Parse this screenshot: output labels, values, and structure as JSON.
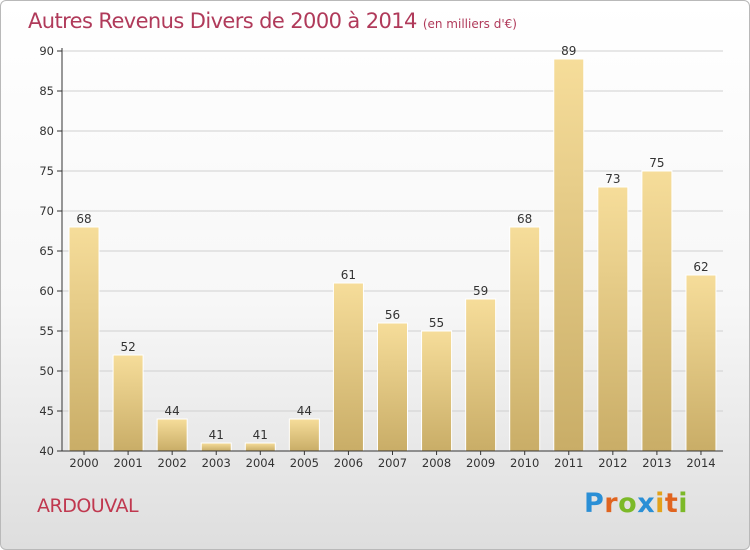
{
  "header": {
    "title": "Autres Revenus Divers de 2000 à 2014",
    "subtitle": "(en milliers d'€)"
  },
  "footer": {
    "place": "ARDOUVAL",
    "brand": "Proxiti"
  },
  "colors": {
    "title": "#b03a5a",
    "bar_light": "#f6dd9a",
    "bar_dark": "#c9ad67",
    "axis": "#333333",
    "grid": "#d0d0d0"
  },
  "chart_data": {
    "type": "bar",
    "title": "Autres Revenus Divers de 2000 à 2014",
    "subtitle": "(en milliers d'€)",
    "xlabel": "",
    "ylabel": "",
    "ylim": [
      40,
      90
    ],
    "ytick_step": 5,
    "grid": true,
    "categories": [
      "2000",
      "2001",
      "2002",
      "2003",
      "2004",
      "2005",
      "2006",
      "2007",
      "2008",
      "2009",
      "2010",
      "2011",
      "2012",
      "2013",
      "2014"
    ],
    "values": [
      68,
      52,
      44,
      41,
      41,
      44,
      61,
      56,
      55,
      59,
      68,
      89,
      73,
      75,
      62
    ]
  }
}
